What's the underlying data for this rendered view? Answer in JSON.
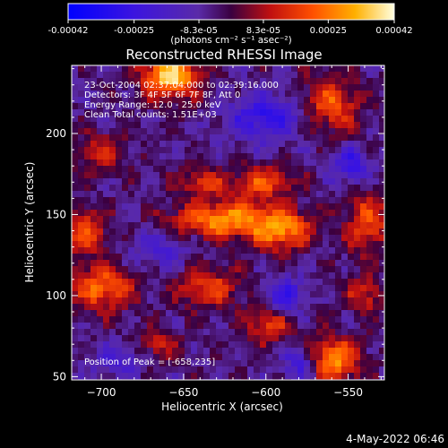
{
  "chart_data": {
    "type": "heatmap",
    "title": "Reconstructed RHESSI Image",
    "xlabel": "Heliocentric X (arcsec)",
    "ylabel": "Heliocentric Y (arcsec)",
    "xlim": [
      -718,
      -528
    ],
    "ylim": [
      48,
      242
    ],
    "x_ticks": [
      -700,
      -650,
      -600,
      -550
    ],
    "y_ticks": [
      50,
      100,
      150,
      200
    ],
    "colorbar": {
      "vmin": -0.00042,
      "vmax": 0.00042,
      "tick_values": [
        -0.00042,
        -0.00025,
        -8.3e-05,
        8.3e-05,
        0.00025,
        0.00042
      ],
      "tick_labels": [
        "-0.00042",
        "-0.00025",
        "-8.3e-05",
        "8.3e-05",
        "0.00025",
        "0.00042"
      ],
      "unit_label": "(photons cm⁻² s⁻¹ asec⁻²)"
    },
    "colormap": {
      "stops": [
        {
          "pos": 0.0,
          "color": "#0000ff"
        },
        {
          "pos": 0.2,
          "color": "#3b14e0"
        },
        {
          "pos": 0.4,
          "color": "#5a2aa8"
        },
        {
          "pos": 0.5,
          "color": "#3a0040"
        },
        {
          "pos": 0.62,
          "color": "#c01010"
        },
        {
          "pos": 0.75,
          "color": "#ff5000"
        },
        {
          "pos": 0.88,
          "color": "#ffb000"
        },
        {
          "pos": 1.0,
          "color": "#ffffe0"
        }
      ]
    },
    "info_lines": [
      "23-Oct-2004 02:37:04.000 to 02:39:16.000",
      "Detectors: 3F 4F 5F 6F 7F 8F, Att 0",
      "Energy Range: 12.0 - 25.0 keV",
      "Clean     Total counts: 1.51E+03"
    ],
    "peak_label": "Position of Peak = [-658,235]",
    "peak": {
      "x": -658,
      "y": 235
    },
    "blobs": [
      {
        "x": -658,
        "y": 235,
        "sx": 12,
        "sy": 9,
        "a": 1.0
      },
      {
        "x": -625,
        "y": 147,
        "sx": 22,
        "sy": 8,
        "a": 0.8
      },
      {
        "x": -590,
        "y": 140,
        "sx": 12,
        "sy": 9,
        "a": 0.7
      },
      {
        "x": -602,
        "y": 170,
        "sx": 14,
        "sy": 7,
        "a": 0.55
      },
      {
        "x": -640,
        "y": 170,
        "sx": 10,
        "sy": 6,
        "a": 0.45
      },
      {
        "x": -700,
        "y": 105,
        "sx": 14,
        "sy": 10,
        "a": 0.65
      },
      {
        "x": -710,
        "y": 140,
        "sx": 10,
        "sy": 10,
        "a": 0.55
      },
      {
        "x": -560,
        "y": 60,
        "sx": 12,
        "sy": 10,
        "a": 0.8
      },
      {
        "x": -560,
        "y": 218,
        "sx": 12,
        "sy": 12,
        "a": 0.6
      },
      {
        "x": -538,
        "y": 145,
        "sx": 10,
        "sy": 14,
        "a": 0.55
      },
      {
        "x": -635,
        "y": 105,
        "sx": 14,
        "sy": 9,
        "a": 0.5
      },
      {
        "x": -598,
        "y": 82,
        "sx": 10,
        "sy": 8,
        "a": 0.5
      },
      {
        "x": -540,
        "y": 100,
        "sx": 8,
        "sy": 8,
        "a": 0.45
      },
      {
        "x": -700,
        "y": 188,
        "sx": 12,
        "sy": 8,
        "a": 0.4
      },
      {
        "x": -665,
        "y": 70,
        "sx": 8,
        "sy": 6,
        "a": 0.4
      },
      {
        "x": -690,
        "y": 60,
        "sx": 10,
        "sy": 7,
        "a": -0.35
      },
      {
        "x": -600,
        "y": 210,
        "sx": 16,
        "sy": 10,
        "a": -0.55
      },
      {
        "x": -588,
        "y": 100,
        "sx": 8,
        "sy": 8,
        "a": -0.5
      },
      {
        "x": -578,
        "y": 58,
        "sx": 8,
        "sy": 8,
        "a": -0.55
      },
      {
        "x": -665,
        "y": 128,
        "sx": 12,
        "sy": 8,
        "a": -0.35
      },
      {
        "x": -548,
        "y": 180,
        "sx": 8,
        "sy": 8,
        "a": -0.5
      }
    ]
  },
  "timestamp": "4-May-2022 06:46"
}
